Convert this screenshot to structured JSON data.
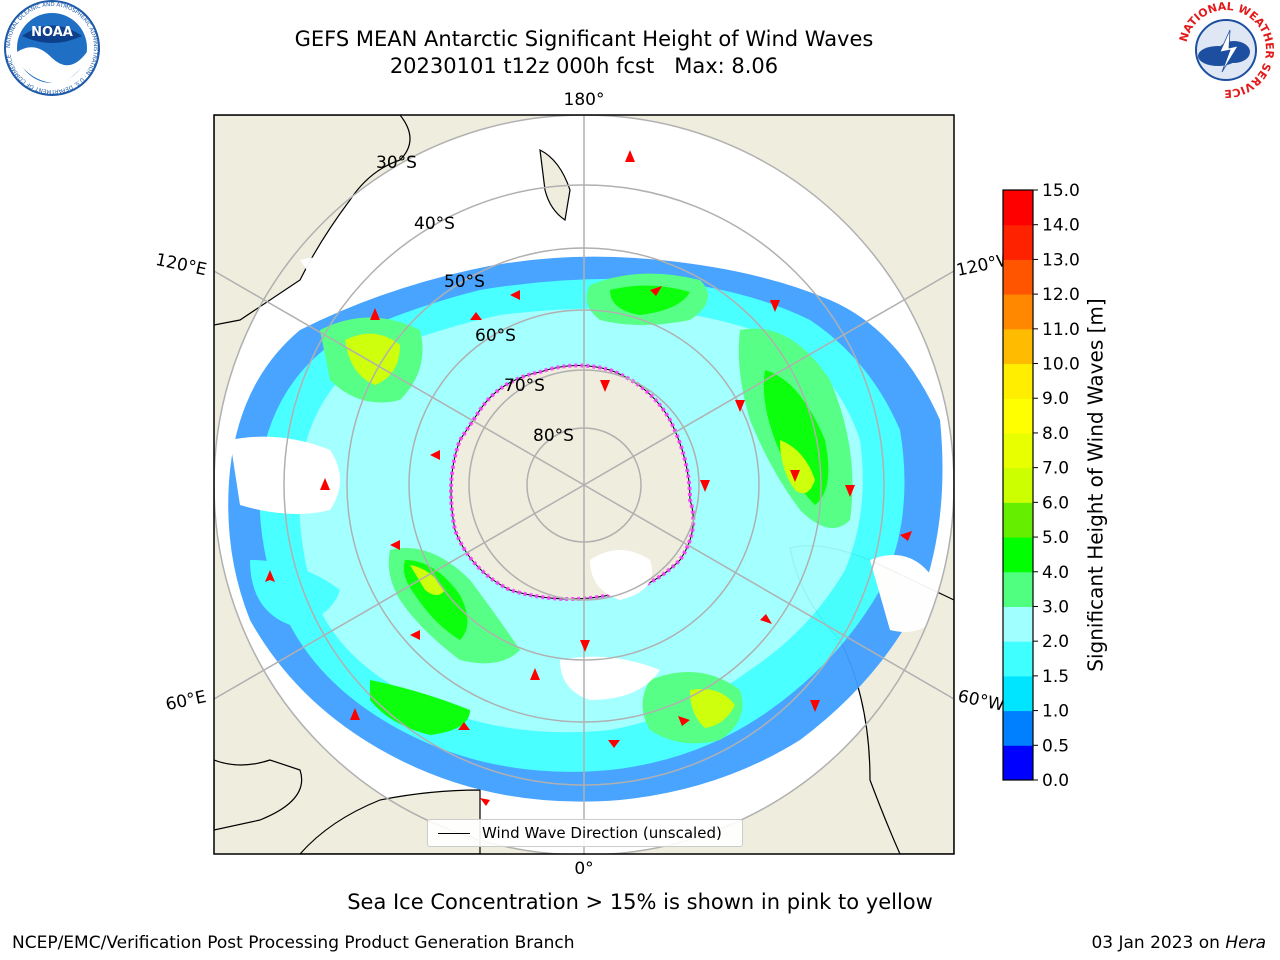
{
  "header": {
    "title_line1": "GEFS MEAN Antarctic Significant Height of Wind Waves",
    "title_line2": "20230101 t12z 000h fcst   Max: 8.06"
  },
  "logos": {
    "noaa_text": "NOAA",
    "noaa_ring_text": "NATIONAL OCEANIC AND ATMOSPHERIC ADMINISTRATION · U.S. DEPARTMENT OF COMMERCE",
    "nws_ring_text": "NATIONAL WEATHER SERVICE"
  },
  "map": {
    "longitude_labels": {
      "top": "180°",
      "upper_left": "120°E",
      "upper_right": "120°W",
      "lower_left": "60°E",
      "lower_right": "60°W",
      "bottom": "0°"
    },
    "latitude_labels": [
      "30°S",
      "40°S",
      "50°S",
      "60°S",
      "70°S",
      "80°S"
    ],
    "legend_label": "Wind Wave Direction (unscaled)"
  },
  "colorbar": {
    "label": "Significant Height of Wind Waves [m]",
    "ticks": [
      "0.0",
      "0.5",
      "1.0",
      "1.5",
      "2.0",
      "3.0",
      "4.0",
      "5.0",
      "6.0",
      "7.0",
      "8.0",
      "9.0",
      "10.0",
      "11.0",
      "12.0",
      "13.0",
      "14.0",
      "15.0"
    ],
    "colors": [
      "#0000ff",
      "#0080ff",
      "#00e5ff",
      "#40ffff",
      "#a0ffff",
      "#50ff80",
      "#00ff00",
      "#66ee00",
      "#ccff00",
      "#e8ff00",
      "#ffff00",
      "#ffee00",
      "#ffbb00",
      "#ff8800",
      "#ff5500",
      "#ff2200",
      "#ff0000"
    ]
  },
  "colors": {
    "land": "#efedde",
    "ocean": "#ffffff",
    "grid": "#b0b0b0",
    "arrow": "#ff0000",
    "sea_ice": "#ff40ff"
  },
  "caption": "Sea Ice Concentration > 15% is shown in pink to yellow",
  "footer": {
    "left": "NCEP/EMC/Verification Post Processing Product Generation Branch",
    "date": "03 Jan 2023 on ",
    "machine": "Hera"
  }
}
